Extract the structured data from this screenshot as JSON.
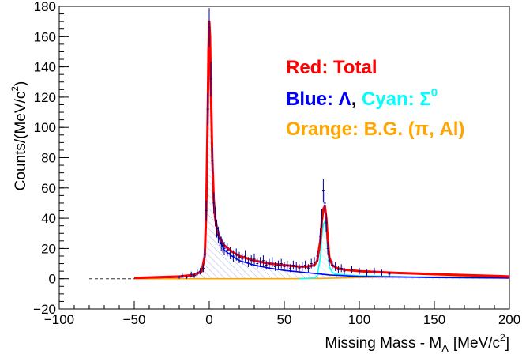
{
  "chart_data": {
    "type": "line",
    "xlabel": "Missing Mass - M",
    "xlabel_sub": "Λ",
    "xlabel_unit": "[MeV/c",
    "xlabel_unit_sup": "2",
    "xlabel_unit_end": "]",
    "ylabel": "Counts/(MeV/c",
    "ylabel_sup": "2",
    "ylabel_end": ")",
    "xlim": [
      -100,
      200
    ],
    "ylim": [
      -20,
      180
    ],
    "x_ticks": [
      -100,
      -50,
      0,
      50,
      100,
      150,
      200
    ],
    "y_ticks": [
      -20,
      0,
      20,
      40,
      60,
      80,
      100,
      120,
      140,
      160,
      180
    ],
    "legend": {
      "line1": {
        "text": "Red: Total",
        "color": "#ff0000"
      },
      "line2_a": {
        "text": "Blue: Λ",
        "color": "#0000ff"
      },
      "line2_sep": {
        "text": ", ",
        "color": "#000000"
      },
      "line2_b": {
        "text": "Cyan: Σ",
        "color": "#00ffff"
      },
      "line2_b_sup": "0",
      "line3": {
        "text": "Orange: B.G. (π, Al)",
        "color": "#ffa500"
      }
    },
    "series": [
      {
        "role": "total-fit",
        "color": "#ff0000",
        "x": [
          -50,
          -20,
          -10,
          -5,
          -3,
          -2,
          -1,
          -0.5,
          0,
          0.5,
          1,
          2,
          3,
          4,
          5,
          6,
          8,
          10,
          15,
          20,
          30,
          40,
          50,
          60,
          65,
          70,
          72,
          74,
          75,
          76,
          77,
          78,
          79,
          80,
          82,
          85,
          90,
          100,
          120,
          150,
          200
        ],
        "y": [
          0.5,
          1.5,
          2.5,
          5,
          15,
          45,
          110,
          150,
          170,
          160,
          130,
          80,
          52,
          40,
          34,
          30,
          25,
          22,
          18,
          15,
          12,
          10,
          9,
          8,
          8,
          9,
          12,
          25,
          38,
          46,
          48,
          40,
          25,
          14,
          9,
          7,
          6,
          5,
          4,
          3,
          1.5
        ]
      },
      {
        "role": "lambda-component",
        "color": "#0000ff",
        "x": [
          -50,
          -20,
          -10,
          -5,
          -3,
          -2,
          -1,
          -0.5,
          0,
          0.5,
          1,
          2,
          3,
          4,
          5,
          6,
          8,
          10,
          15,
          20,
          30,
          40,
          50,
          60,
          70,
          75,
          80,
          90,
          100,
          150,
          200
        ],
        "y": [
          0.3,
          1,
          2,
          4.5,
          14,
          44,
          108,
          148,
          168,
          158,
          128,
          78,
          50,
          38,
          32,
          28,
          23,
          19,
          15,
          12,
          9,
          7,
          5.5,
          4.5,
          3.5,
          3,
          2.5,
          2,
          1.5,
          0.8,
          0.4
        ]
      },
      {
        "role": "sigma0-component",
        "color": "#00ffff",
        "x": [
          60,
          70,
          72,
          74,
          75,
          76,
          77,
          78,
          79,
          80,
          82,
          85,
          90,
          100,
          120,
          150,
          200
        ],
        "y": [
          0,
          0.5,
          2,
          14,
          28,
          36,
          38,
          31,
          18,
          8,
          4,
          3,
          2.5,
          2,
          1.5,
          1,
          0.5
        ]
      },
      {
        "role": "background",
        "color": "#ffa500",
        "x": [
          -50,
          0,
          50,
          75,
          100,
          150,
          200
        ],
        "y": [
          0,
          0,
          0,
          0.2,
          0.8,
          1.2,
          1.5
        ]
      }
    ],
    "data_points": {
      "color": "#00008b",
      "x": [
        -20,
        -18,
        -15,
        -12,
        -10,
        -8,
        -6,
        -4,
        -3,
        -2,
        -1,
        0,
        1,
        2,
        3,
        4,
        5,
        6,
        7,
        8,
        9,
        10,
        12,
        14,
        16,
        18,
        20,
        22,
        24,
        26,
        28,
        30,
        32,
        34,
        36,
        38,
        40,
        42,
        44,
        46,
        48,
        50,
        52,
        54,
        56,
        58,
        60,
        62,
        64,
        66,
        68,
        70,
        72,
        74,
        75,
        76,
        77,
        78,
        79,
        80,
        82,
        84,
        86,
        88,
        90,
        95,
        100,
        105,
        110,
        115,
        120
      ],
      "y": [
        1,
        2,
        1,
        3,
        2,
        4,
        5,
        7,
        16,
        45,
        112,
        166,
        132,
        78,
        50,
        41,
        33,
        29,
        27,
        23,
        22,
        20,
        19,
        17,
        15,
        16,
        14,
        13,
        15,
        11,
        12,
        13,
        10,
        11,
        12,
        9,
        10,
        11,
        8,
        9,
        10,
        8,
        9,
        7,
        9,
        8,
        7,
        8,
        9,
        7,
        10,
        11,
        15,
        28,
        40,
        58,
        50,
        37,
        20,
        12,
        9,
        8,
        6,
        7,
        5,
        6,
        5,
        4,
        5,
        4,
        3
      ]
    }
  }
}
